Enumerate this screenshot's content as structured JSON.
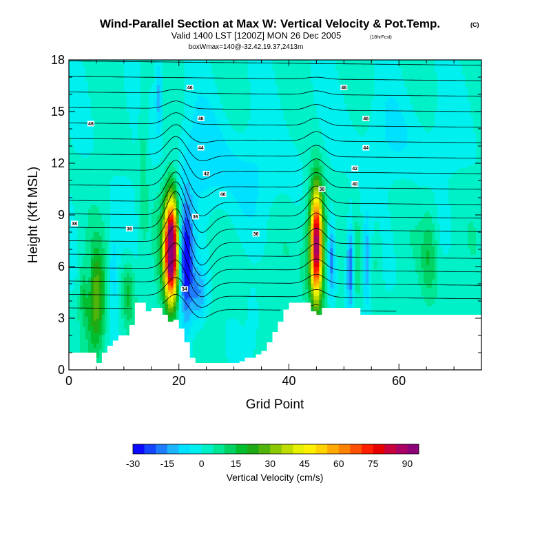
{
  "chart_data": {
    "type": "heatmap",
    "title": "Wind-Parallel Section at Max W: Vertical Velocity & Pot.Temp.",
    "title_mark": "(C)",
    "subtitle": "Valid 1400 LST [1200Z] MON 26 Dec 2005",
    "subtitle_note": "(18hrFcst)",
    "subtitle2": "boxWmax=140@-32.42,19.37,2413m",
    "xlabel": "Grid Point",
    "ylabel": "Height (Kft MSL)",
    "xlim": [
      0,
      75
    ],
    "ylim": [
      0,
      18
    ],
    "x_ticks": [
      0,
      20,
      40,
      60
    ],
    "y_ticks": [
      0,
      3,
      6,
      9,
      12,
      15,
      18
    ],
    "colorbar": {
      "label": "Vertical Velocity (cm/s)",
      "tick_values": [
        -30,
        -15,
        0,
        15,
        30,
        45,
        60,
        75,
        90
      ],
      "tick_labels": [
        "-30",
        "-15",
        "0",
        "15",
        "30",
        "45",
        "60",
        "75",
        "90"
      ],
      "levels": [
        -30,
        -25,
        -20,
        -15,
        -10,
        -5,
        0,
        5,
        10,
        15,
        20,
        25,
        30,
        35,
        40,
        45,
        50,
        55,
        60,
        65,
        70,
        75,
        80,
        85,
        90,
        95
      ],
      "colors": [
        "#0a0aff",
        "#1446ff",
        "#1e7dff",
        "#1eb4ff",
        "#00e1ff",
        "#00f0f0",
        "#00f0c8",
        "#00e896",
        "#00d264",
        "#00be2d",
        "#1eaa14",
        "#50b40a",
        "#8cc800",
        "#bedc00",
        "#e6f000",
        "#fff000",
        "#ffd200",
        "#ffaa00",
        "#ff8200",
        "#ff5000",
        "#ff1e00",
        "#e60000",
        "#c8003c",
        "#aa0064",
        "#8c0078"
      ]
    },
    "terrain_kft": [
      [
        0,
        1
      ],
      [
        5,
        1
      ],
      [
        5,
        0.4
      ],
      [
        6,
        0.4
      ],
      [
        6,
        1
      ],
      [
        7,
        1
      ],
      [
        7,
        1.4
      ],
      [
        8,
        1.4
      ],
      [
        8,
        1.7
      ],
      [
        9,
        1.7
      ],
      [
        9,
        2
      ],
      [
        11,
        2
      ],
      [
        11,
        2.6
      ],
      [
        12,
        2.6
      ],
      [
        12,
        3.9
      ],
      [
        14,
        3.9
      ],
      [
        14,
        3.4
      ],
      [
        15,
        3.4
      ],
      [
        15,
        3.6
      ],
      [
        17,
        3.6
      ],
      [
        17,
        3.2
      ],
      [
        18,
        3.2
      ],
      [
        18,
        2.8
      ],
      [
        19,
        2.8
      ],
      [
        19,
        2.9
      ],
      [
        20,
        2.9
      ],
      [
        20,
        2.4
      ],
      [
        21,
        2.4
      ],
      [
        21,
        1.6
      ],
      [
        22,
        1.6
      ],
      [
        22,
        0.7
      ],
      [
        23,
        0.7
      ],
      [
        23,
        0.4
      ],
      [
        31,
        0.4
      ],
      [
        31,
        0.5
      ],
      [
        32,
        0.5
      ],
      [
        32,
        0.7
      ],
      [
        34,
        0.7
      ],
      [
        34,
        0.9
      ],
      [
        35,
        0.9
      ],
      [
        35,
        1.1
      ],
      [
        36,
        1.1
      ],
      [
        36,
        1.6
      ],
      [
        37,
        1.6
      ],
      [
        37,
        2.2
      ],
      [
        38,
        2.2
      ],
      [
        38,
        2.8
      ],
      [
        39,
        2.8
      ],
      [
        39,
        3.5
      ],
      [
        40,
        3.5
      ],
      [
        40,
        3.9
      ],
      [
        44,
        3.9
      ],
      [
        44,
        3.4
      ],
      [
        45,
        3.4
      ],
      [
        45,
        3.2
      ],
      [
        46,
        3.2
      ],
      [
        46,
        3.6
      ],
      [
        53,
        3.6
      ],
      [
        53,
        3.2
      ],
      [
        75,
        3.2
      ]
    ],
    "isentropes": {
      "levels": [
        32,
        33,
        34,
        35,
        36,
        37,
        38,
        39,
        40,
        41,
        42,
        43,
        44,
        45,
        46,
        47,
        48,
        49,
        50
      ],
      "labels": [
        {
          "text": "46",
          "x": 22,
          "y": 16.4
        },
        {
          "text": "46",
          "x": 50,
          "y": 16.4
        },
        {
          "text": "46",
          "x": 4,
          "y": 14.3
        },
        {
          "text": "46",
          "x": 24,
          "y": 14.6
        },
        {
          "text": "46",
          "x": 54,
          "y": 14.6
        },
        {
          "text": "44",
          "x": 24,
          "y": 12.9
        },
        {
          "text": "44",
          "x": 54,
          "y": 12.9
        },
        {
          "text": "42",
          "x": 25,
          "y": 11.4
        },
        {
          "text": "42",
          "x": 52,
          "y": 11.7
        },
        {
          "text": "40",
          "x": 28,
          "y": 10.2
        },
        {
          "text": "40",
          "x": 52,
          "y": 10.8
        },
        {
          "text": "38",
          "x": 46,
          "y": 10.5
        },
        {
          "text": "38",
          "x": 1,
          "y": 8.5
        },
        {
          "text": "36",
          "x": 23,
          "y": 8.9
        },
        {
          "text": "36",
          "x": 11,
          "y": 8.2
        },
        {
          "text": "36",
          "x": 34,
          "y": 7.9
        },
        {
          "text": "34",
          "x": 21,
          "y": 4.7
        }
      ]
    }
  }
}
